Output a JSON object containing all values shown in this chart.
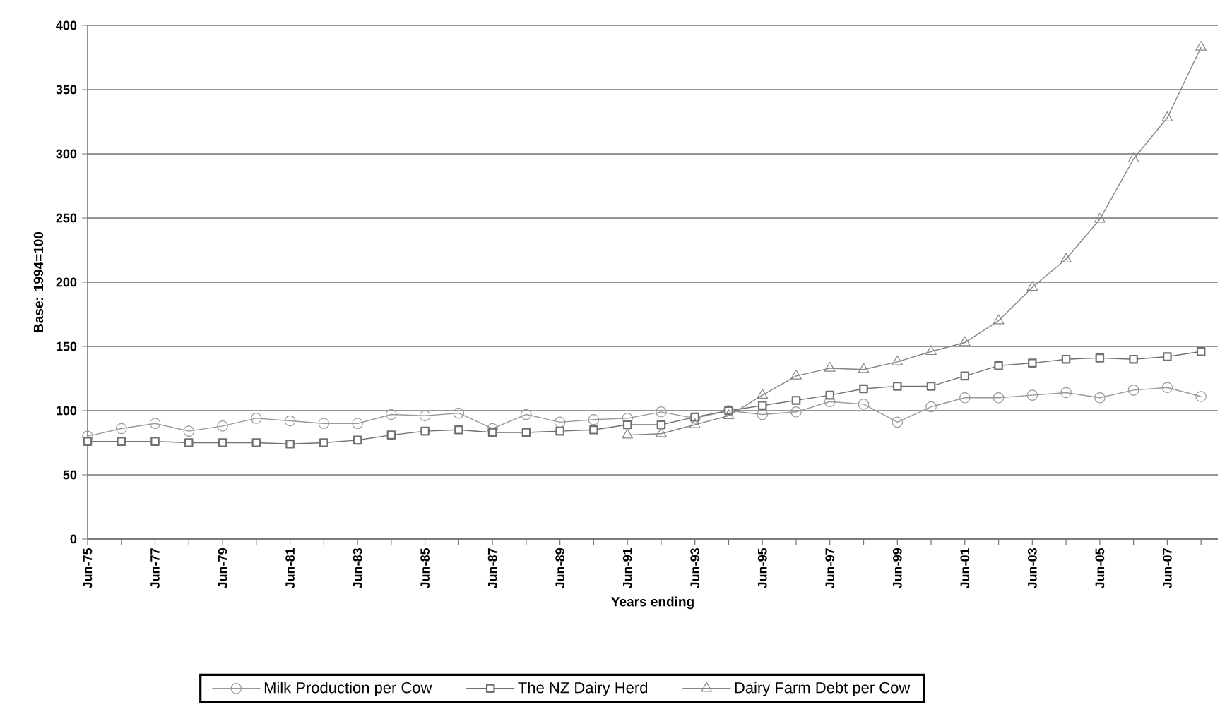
{
  "chart_data": {
    "type": "line",
    "xlabel": "Years ending",
    "ylabel": "Base: 1994=100",
    "categories": [
      "Jun-75",
      null,
      "Jun-77",
      null,
      "Jun-79",
      null,
      "Jun-81",
      null,
      "Jun-83",
      null,
      "Jun-85",
      null,
      "Jun-87",
      null,
      "Jun-89",
      null,
      "Jun-91",
      null,
      "Jun-93",
      null,
      "Jun-95",
      null,
      "Jun-97",
      null,
      "Jun-99",
      null,
      "Jun-01",
      null,
      "Jun-03",
      null,
      "Jun-05",
      null,
      "Jun-07",
      null
    ],
    "ylim": [
      0,
      400
    ],
    "yticks": [
      0,
      50,
      100,
      150,
      200,
      250,
      300,
      350,
      400
    ],
    "grid": "y",
    "legend": "bottom",
    "series": [
      {
        "name": "Milk Production per Cow",
        "color": "#999999",
        "marker": "circle",
        "values": [
          80,
          86,
          90,
          84,
          88,
          94,
          92,
          90,
          90,
          97,
          96,
          98,
          86,
          97,
          91,
          93,
          94,
          99,
          94,
          100,
          97,
          99,
          107,
          105,
          91,
          103,
          110,
          110,
          112,
          114,
          110,
          116,
          118,
          111
        ]
      },
      {
        "name": "The NZ Dairy Herd",
        "color": "#707070",
        "marker": "square",
        "values": [
          76,
          76,
          76,
          75,
          75,
          75,
          74,
          75,
          77,
          81,
          84,
          85,
          83,
          83,
          84,
          85,
          89,
          89,
          95,
          100,
          104,
          108,
          112,
          117,
          119,
          119,
          127,
          135,
          137,
          140,
          141,
          140,
          142,
          146
        ]
      },
      {
        "name": "Dairy Farm Debt per Cow",
        "color": "#858585",
        "marker": "triangle",
        "values": [
          null,
          null,
          null,
          null,
          null,
          null,
          null,
          null,
          null,
          null,
          null,
          null,
          null,
          null,
          null,
          null,
          81,
          82,
          89,
          96,
          112,
          127,
          133,
          132,
          138,
          146,
          153,
          170,
          196,
          218,
          249,
          296,
          328,
          383
        ]
      }
    ]
  }
}
